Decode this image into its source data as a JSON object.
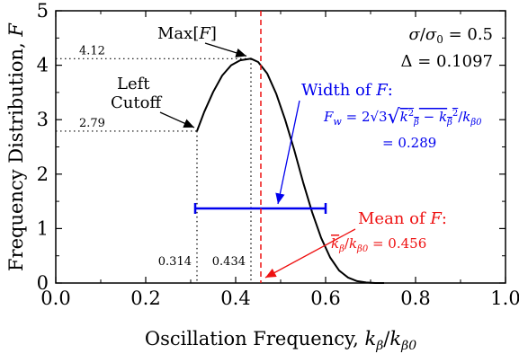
{
  "chart_data": {
    "type": "line",
    "xlabel": "Oscillation Frequency, k_β/k_β0",
    "ylabel": "Frequency Distribution, F",
    "xlim": [
      0.0,
      1.0
    ],
    "ylim": [
      0,
      5
    ],
    "xticks": [
      "0.0",
      "0.2",
      "0.4",
      "0.6",
      "0.8",
      "1.0"
    ],
    "yticks": [
      "0",
      "1",
      "2",
      "3",
      "4",
      "5"
    ],
    "grid": false,
    "series": [
      {
        "color": "#000000",
        "x": [
          0.314,
          0.33,
          0.35,
          0.37,
          0.39,
          0.41,
          0.434,
          0.45,
          0.47,
          0.49,
          0.51,
          0.53,
          0.55,
          0.57,
          0.59,
          0.61,
          0.63,
          0.65,
          0.67,
          0.69,
          0.71,
          0.73
        ],
        "y": [
          2.79,
          3.14,
          3.51,
          3.81,
          4.0,
          4.09,
          4.12,
          4.06,
          3.85,
          3.48,
          3.0,
          2.45,
          1.85,
          1.3,
          0.83,
          0.47,
          0.23,
          0.1,
          0.035,
          0.01,
          0.0,
          0.0
        ]
      }
    ],
    "parameters": [
      "σ/σ_0 = 0.5",
      "Δ = 0.1097"
    ],
    "annotations": {
      "max": {
        "label": "Max[F]",
        "x": 0.434,
        "y": 4.12,
        "x_text": "0.434",
        "y_text": "4.12"
      },
      "left_cutoff": {
        "label_line1": "Left",
        "label_line2": "Cutoff",
        "x": 0.314,
        "y": 2.79,
        "x_text": "0.314",
        "y_text": "2.79"
      },
      "width": {
        "title": "Width of F:",
        "formula": "F_w = 2√3 √(k_β² − k_β²)/k_β0",
        "value": "= 0.289",
        "x_start": 0.31,
        "x_end": 0.6,
        "y": 1.37,
        "color": "#0000ee"
      },
      "mean": {
        "title": "Mean of F:",
        "formula": "k_β/k_β0 = 0.456",
        "x": 0.456,
        "color": "#ee1111"
      }
    }
  }
}
